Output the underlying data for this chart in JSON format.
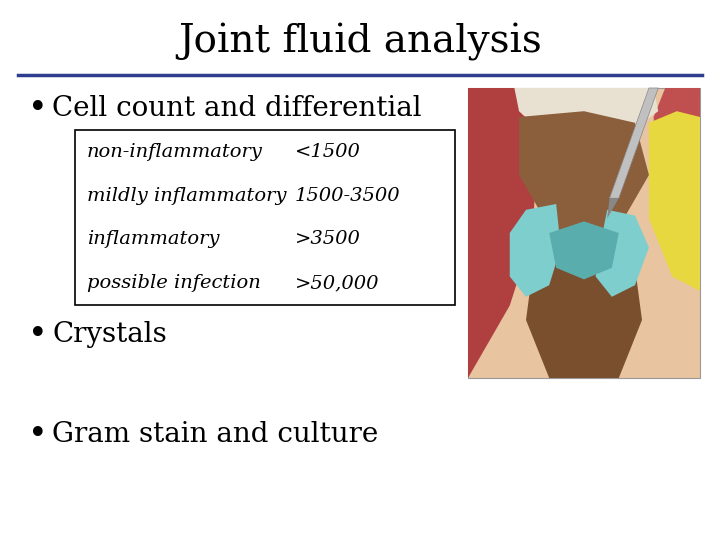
{
  "title": "Joint fluid analysis",
  "title_fontsize": 28,
  "title_color": "#000000",
  "bg_color": "#ffffff",
  "separator_color": "#2e3d8f",
  "bullet_items": [
    "Cell count and differential",
    "Crystals",
    "Gram stain and culture"
  ],
  "bullet_fontsize": 20,
  "table_rows": [
    [
      "non-inflammatory",
      "<1500"
    ],
    [
      "mildly inflammatory",
      "1500-3500"
    ],
    [
      "inflammatory",
      ">3500"
    ],
    [
      "possible infection",
      ">50,000"
    ]
  ],
  "table_fontsize": 14,
  "table_border_color": "#000000",
  "table_bg": "#ffffff",
  "img_colors": {
    "bg": "#e8c4a0",
    "muscle_left": "#b04040",
    "muscle_right": "#c05050",
    "bone_upper": "#8b5e3c",
    "bone_lower": "#7a4f2d",
    "cartilage": "#7ecece",
    "meniscus": "#5aadad",
    "fat_yellow": "#e8d840",
    "needle_body": "#b0b0b0",
    "needle_tip": "#888888",
    "white_tissue": "#e8e0d0",
    "dark_line": "#504030"
  }
}
